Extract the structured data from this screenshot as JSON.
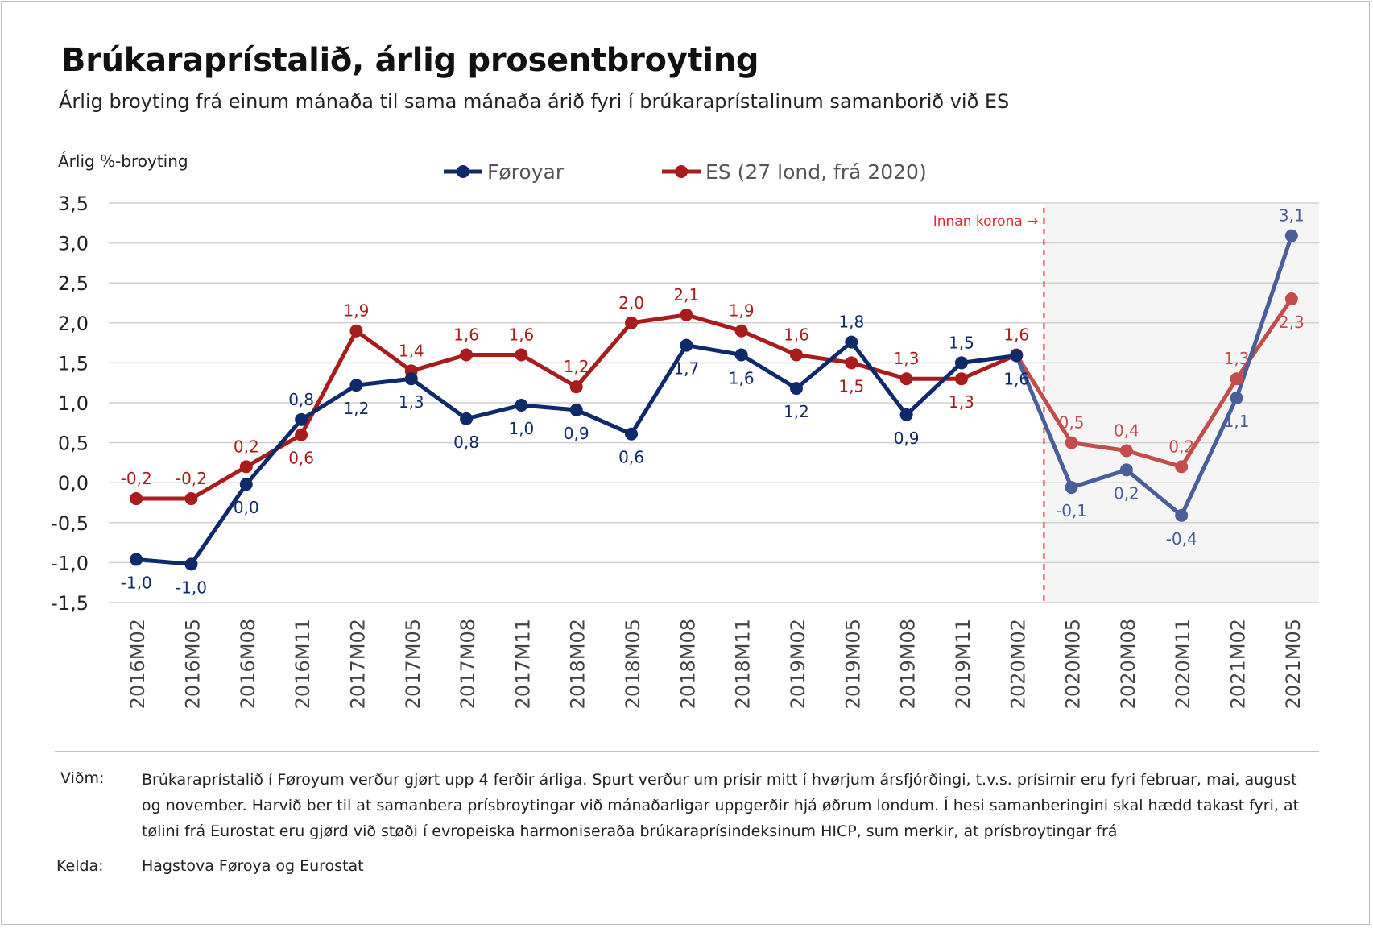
{
  "title": "Brúkaraprístalið, árlig prosentbroyting",
  "subtitle": "Árlig broyting frá einum mánaða til sama mánaða árið fyri í brúkaraprístalinum samanborið við ES",
  "footer": {
    "note_label": "Viðm:",
    "note_text": "Brúkaraprístalið í Føroyum verður gjørt upp 4 ferðir árliga. Spurt verður um prísir mitt í hvørjum ársfjórðingi, t.v.s. prísirnir eru fyri februar, mai, august og november. Harvið ber til at samanbera prísbroytingar við mánaðarligar uppgerðir hjá øðrum londum. Í hesi samanberingini skal hædd takast fyri, at tølini frá Eurostat eru gjørd við støði í evropeiska harmoniseraða brúkaraprísindeksinum HICP, sum merkir, at prísbroytingar frá",
    "source_label": "Kelda:",
    "source_text": "Hagstova Føroya og Eurostat"
  },
  "colors": {
    "faroe": "#0f2a6b",
    "faroe_light": "#4a5f9a",
    "eu": "#a81c1c",
    "eu_light": "#c44c4c",
    "corona_line": "#e8262b",
    "shade": "#f5f5f5",
    "grid": "#d0d0d0"
  },
  "chart_data": {
    "type": "line",
    "ylabel": "Árlig %-broyting",
    "ylim": [
      -1.5,
      3.5
    ],
    "yticks": [
      3.5,
      3.0,
      2.5,
      2.0,
      1.5,
      1.0,
      0.5,
      0.0,
      -0.5,
      -1.0,
      -1.5
    ],
    "ytick_labels": [
      "3,5",
      "3,0",
      "2,5",
      "2,0",
      "1,5",
      "1,0",
      "0,5",
      "0,0",
      "-0,5",
      "-1,0",
      "-1,5"
    ],
    "categories": [
      "2016M02",
      "2016M05",
      "2016M08",
      "2016M11",
      "2017M02",
      "2017M05",
      "2017M08",
      "2017M11",
      "2018M02",
      "2018M05",
      "2018M08",
      "2018M11",
      "2019M02",
      "2019M05",
      "2019M08",
      "2019M11",
      "2020M02",
      "2020M05",
      "2020M08",
      "2020M11",
      "2021M02",
      "2021M05"
    ],
    "corona_start_index": 16.5,
    "corona_label": "Innan korona →",
    "legend_position": "top-center",
    "series": [
      {
        "name": "Føroyar",
        "values": [
          -0.96,
          -1.02,
          -0.02,
          0.79,
          1.22,
          1.3,
          0.8,
          0.97,
          0.91,
          0.61,
          1.72,
          1.6,
          1.18,
          1.76,
          0.85,
          1.5,
          1.59,
          -0.06,
          0.16,
          -0.41,
          1.06,
          3.09
        ],
        "labels": [
          "-1,0",
          "-1,0",
          "0,0",
          "0,8",
          "1,2",
          "1,3",
          "0,8",
          "1,0",
          "0,9",
          "0,6",
          "1,7",
          "1,6",
          "1,2",
          "1,8",
          "0,9",
          "1,5",
          "1,6",
          "-0,1",
          "0,2",
          "-0,4",
          "1,1",
          "3,1"
        ],
        "label_pos": [
          "below",
          "below",
          "below",
          "above",
          "below",
          "below",
          "below",
          "below",
          "below",
          "below",
          "below",
          "below",
          "below",
          "above",
          "below",
          "above",
          "below",
          "below",
          "below",
          "below",
          "below",
          "above"
        ]
      },
      {
        "name": "ES (27 lond, frá 2020)",
        "values": [
          -0.2,
          -0.2,
          0.2,
          0.6,
          1.9,
          1.4,
          1.6,
          1.6,
          1.2,
          2.0,
          2.1,
          1.9,
          1.6,
          1.5,
          1.3,
          1.3,
          1.6,
          0.5,
          0.4,
          0.2,
          1.3,
          2.3
        ],
        "labels": [
          "-0,2",
          "-0,2",
          "0,2",
          "0,6",
          "1,9",
          "1,4",
          "1,6",
          "1,6",
          "1,2",
          "2,0",
          "2,1",
          "1,9",
          "1,6",
          "1,5",
          "1,3",
          "1,3",
          "1,6",
          "0,5",
          "0,4",
          "0,2",
          "1,3",
          "2,3"
        ],
        "label_pos": [
          "above",
          "above",
          "above",
          "below",
          "above",
          "above",
          "above",
          "above",
          "above",
          "above",
          "above",
          "above",
          "above",
          "below",
          "above",
          "below",
          "above",
          "above",
          "above",
          "above",
          "above",
          "below"
        ]
      }
    ]
  }
}
